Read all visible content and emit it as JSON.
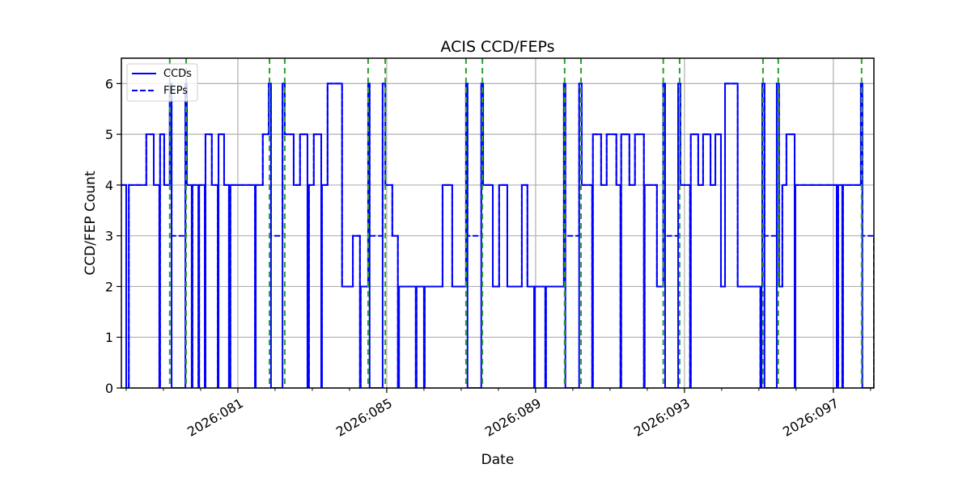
{
  "chart_data": {
    "type": "line",
    "title": "ACIS CCD/FEPs",
    "xlabel": "Date",
    "ylabel": "CCD/FEP Count",
    "xlim": [
      77.87,
      98.09
    ],
    "ylim": [
      0,
      6.5
    ],
    "grid": true,
    "legend_placement": "top-left",
    "x_major_ticks": [
      81,
      85,
      89,
      93,
      97
    ],
    "x_tick_labels": [
      "2026:081",
      "2026:085",
      "2026:089",
      "2026:093",
      "2026:097"
    ],
    "x_minor_ticks": [
      78,
      79,
      80,
      82,
      83,
      84,
      86,
      87,
      88,
      90,
      91,
      92,
      94,
      95,
      96,
      98
    ],
    "y_ticks": [
      0,
      1,
      2,
      3,
      4,
      5,
      6
    ],
    "y_tick_labels": [
      "0",
      "1",
      "2",
      "3",
      "4",
      "5",
      "6"
    ],
    "legend": [
      "CCDs",
      "FEPs"
    ],
    "colors": {
      "series": "#0000ff",
      "markers": "#2ca02c",
      "grid": "#b0b0b0"
    },
    "series": [
      {
        "name": "CCDs",
        "style": "solid",
        "steps": [
          [
            77.87,
            4
          ],
          [
            78.0,
            0
          ],
          [
            78.07,
            4
          ],
          [
            78.54,
            5
          ],
          [
            78.74,
            4
          ],
          [
            78.89,
            0
          ],
          [
            78.91,
            5
          ],
          [
            79.02,
            4
          ],
          [
            79.17,
            6
          ],
          [
            79.22,
            0
          ],
          [
            79.59,
            6
          ],
          [
            79.63,
            4
          ],
          [
            79.76,
            0
          ],
          [
            79.78,
            4
          ],
          [
            79.94,
            0
          ],
          [
            79.96,
            4
          ],
          [
            80.11,
            0
          ],
          [
            80.13,
            5
          ],
          [
            80.3,
            4
          ],
          [
            80.46,
            0
          ],
          [
            80.48,
            5
          ],
          [
            80.63,
            4
          ],
          [
            80.76,
            0
          ],
          [
            80.8,
            4
          ],
          [
            81.46,
            0
          ],
          [
            81.48,
            4
          ],
          [
            81.67,
            5
          ],
          [
            81.83,
            6
          ],
          [
            81.89,
            0
          ],
          [
            82.2,
            6
          ],
          [
            82.26,
            5
          ],
          [
            82.5,
            4
          ],
          [
            82.67,
            5
          ],
          [
            82.87,
            0
          ],
          [
            82.91,
            4
          ],
          [
            83.04,
            5
          ],
          [
            83.24,
            0
          ],
          [
            83.26,
            4
          ],
          [
            83.41,
            6
          ],
          [
            83.8,
            2
          ],
          [
            84.09,
            3
          ],
          [
            84.28,
            0
          ],
          [
            84.3,
            2
          ],
          [
            84.5,
            6
          ],
          [
            84.54,
            0
          ],
          [
            84.89,
            6
          ],
          [
            84.96,
            4
          ],
          [
            85.15,
            3
          ],
          [
            85.3,
            0
          ],
          [
            85.33,
            2
          ],
          [
            85.78,
            0
          ],
          [
            85.8,
            2
          ],
          [
            86.0,
            0
          ],
          [
            86.02,
            2
          ],
          [
            86.5,
            4
          ],
          [
            86.76,
            2
          ],
          [
            87.13,
            6
          ],
          [
            87.17,
            0
          ],
          [
            87.54,
            6
          ],
          [
            87.59,
            4
          ],
          [
            87.85,
            2
          ],
          [
            88.02,
            4
          ],
          [
            88.24,
            2
          ],
          [
            88.63,
            4
          ],
          [
            88.78,
            2
          ],
          [
            88.96,
            0
          ],
          [
            88.98,
            2
          ],
          [
            89.26,
            0
          ],
          [
            89.28,
            2
          ],
          [
            89.76,
            6
          ],
          [
            89.8,
            0
          ],
          [
            90.17,
            6
          ],
          [
            90.24,
            4
          ],
          [
            90.52,
            0
          ],
          [
            90.54,
            5
          ],
          [
            90.76,
            4
          ],
          [
            90.91,
            5
          ],
          [
            91.17,
            4
          ],
          [
            91.28,
            0
          ],
          [
            91.3,
            5
          ],
          [
            91.52,
            4
          ],
          [
            91.67,
            5
          ],
          [
            91.91,
            0
          ],
          [
            91.93,
            4
          ],
          [
            92.26,
            2
          ],
          [
            92.43,
            6
          ],
          [
            92.48,
            0
          ],
          [
            92.83,
            6
          ],
          [
            92.89,
            4
          ],
          [
            93.15,
            0
          ],
          [
            93.17,
            5
          ],
          [
            93.37,
            4
          ],
          [
            93.5,
            5
          ],
          [
            93.7,
            4
          ],
          [
            93.83,
            5
          ],
          [
            93.98,
            2
          ],
          [
            94.09,
            6
          ],
          [
            94.43,
            2
          ],
          [
            95.04,
            0
          ],
          [
            95.07,
            2
          ],
          [
            95.09,
            6
          ],
          [
            95.15,
            0
          ],
          [
            95.48,
            6
          ],
          [
            95.54,
            2
          ],
          [
            95.63,
            4
          ],
          [
            95.74,
            5
          ],
          [
            95.96,
            0
          ],
          [
            95.98,
            4
          ],
          [
            97.09,
            0
          ],
          [
            97.13,
            4
          ],
          [
            97.24,
            0
          ],
          [
            97.26,
            4
          ],
          [
            97.74,
            6
          ],
          [
            97.78,
            0
          ],
          [
            98.09,
            0
          ]
        ]
      },
      {
        "name": "FEPs",
        "style": "dashed",
        "same_as": "CCDs",
        "overrides": [
          [
            79.22,
            79.59,
            3
          ],
          [
            81.89,
            82.2,
            3
          ],
          [
            84.54,
            84.89,
            3
          ],
          [
            87.17,
            87.54,
            3
          ],
          [
            89.8,
            90.17,
            3
          ],
          [
            92.48,
            92.83,
            3
          ],
          [
            95.15,
            95.48,
            3
          ],
          [
            97.78,
            98.09,
            3
          ]
        ]
      }
    ],
    "vertical_markers": [
      79.17,
      79.61,
      81.85,
      82.26,
      84.5,
      84.96,
      87.13,
      87.57,
      89.78,
      90.22,
      92.43,
      92.87,
      95.11,
      95.52,
      97.76
    ]
  }
}
